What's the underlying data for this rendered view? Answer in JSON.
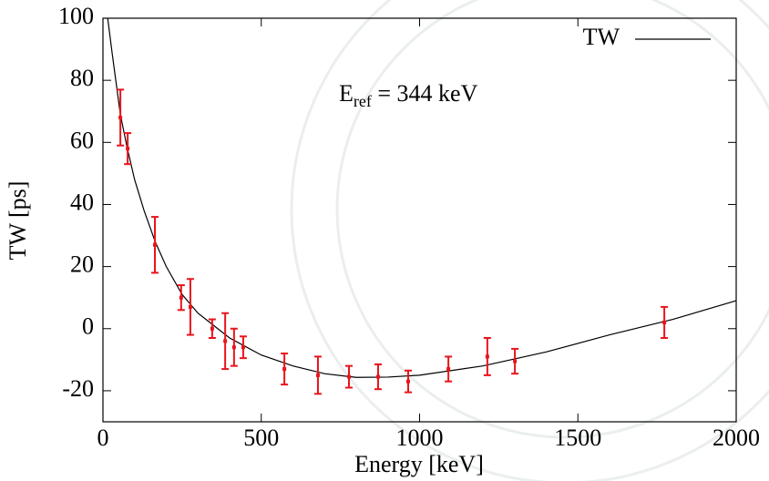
{
  "chart_data": {
    "type": "line",
    "xlabel": "Energy [keV]",
    "ylabel": "TW [ps]",
    "annotation": {
      "main": "E",
      "sub": "ref",
      "rest": " = 344 keV"
    },
    "xlim": [
      0,
      2000
    ],
    "ylim": [
      -30,
      100
    ],
    "xticks": [
      0,
      500,
      1000,
      1500,
      2000
    ],
    "yticks": [
      -20,
      0,
      20,
      40,
      60,
      80,
      100
    ],
    "legend": "top-right",
    "series": [
      {
        "name": "TW",
        "color": "#000000",
        "x": [
          15,
          30,
          55,
          75,
          100,
          130,
          165,
          200,
          250,
          300,
          350,
          400,
          500,
          600,
          700,
          800,
          900,
          1000,
          1200,
          1400,
          1600,
          1800,
          2000
        ],
        "values": [
          100,
          88,
          69,
          59,
          48,
          38,
          28,
          20,
          11,
          5,
          1,
          -3,
          -8.5,
          -12,
          -14.5,
          -15.7,
          -15.6,
          -15,
          -12,
          -7.5,
          -2,
          3,
          9
        ]
      }
    ],
    "points": {
      "color": "#e8141c",
      "x": [
        55,
        78,
        164,
        247,
        276,
        345,
        386,
        414,
        443,
        573,
        679,
        777,
        869,
        964,
        1091,
        1214,
        1301,
        1773
      ],
      "values": [
        68,
        58,
        27,
        10,
        7,
        0,
        -4,
        -6,
        -6,
        -13,
        -15,
        -15.5,
        -15.5,
        -17,
        -13,
        -9,
        -10.5,
        2
      ],
      "errors": [
        9,
        5,
        9,
        4,
        9,
        3,
        9,
        6,
        3.5,
        5,
        6,
        3.5,
        4,
        3.5,
        4,
        6,
        4,
        5
      ]
    }
  }
}
